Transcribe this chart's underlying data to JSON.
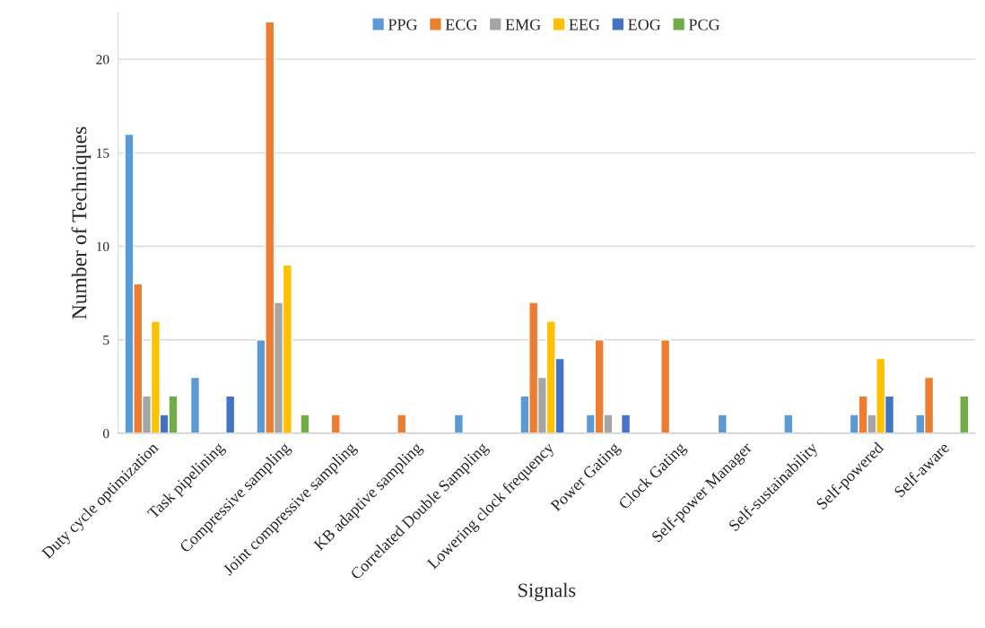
{
  "chart_data": {
    "type": "bar",
    "xlabel": "Signals",
    "ylabel": "Number of Techniques",
    "categories": [
      "Duty cycle optimization",
      "Task pipelining",
      "Compressive sampling",
      "Joint compressive sampling",
      "KB adaptive sampling",
      "Correlated Double Sampling",
      "Lowering clock frequency",
      "Power Gating",
      "Clock Gating",
      "Self-power Manager",
      "Self-sustainability",
      "Self-powered",
      "Self-aware"
    ],
    "series": [
      {
        "name": "PPG",
        "color": "#5b9bd5",
        "values": [
          16,
          3,
          5,
          null,
          null,
          1,
          2,
          1,
          null,
          1,
          1,
          1,
          1
        ]
      },
      {
        "name": "ECG",
        "color": "#ed7d31",
        "values": [
          8,
          null,
          22,
          1,
          1,
          null,
          7,
          5,
          5,
          null,
          null,
          2,
          3
        ]
      },
      {
        "name": "EMG",
        "color": "#a5a5a5",
        "values": [
          2,
          null,
          7,
          null,
          null,
          null,
          3,
          1,
          null,
          null,
          null,
          1,
          null
        ]
      },
      {
        "name": "EEG",
        "color": "#ffc000",
        "values": [
          6,
          null,
          9,
          null,
          null,
          null,
          6,
          null,
          null,
          null,
          null,
          4,
          null
        ]
      },
      {
        "name": "EOG",
        "color": "#4472c4",
        "values": [
          1,
          2,
          null,
          null,
          null,
          null,
          4,
          1,
          null,
          null,
          null,
          2,
          null
        ]
      },
      {
        "name": "PCG",
        "color": "#70ad47",
        "values": [
          2,
          null,
          1,
          null,
          null,
          null,
          null,
          null,
          null,
          null,
          null,
          null,
          2
        ]
      }
    ],
    "ylim": [
      0,
      22.5
    ],
    "yticks": [
      0,
      5,
      10,
      15,
      20
    ],
    "grid": "y",
    "legend": "top"
  }
}
